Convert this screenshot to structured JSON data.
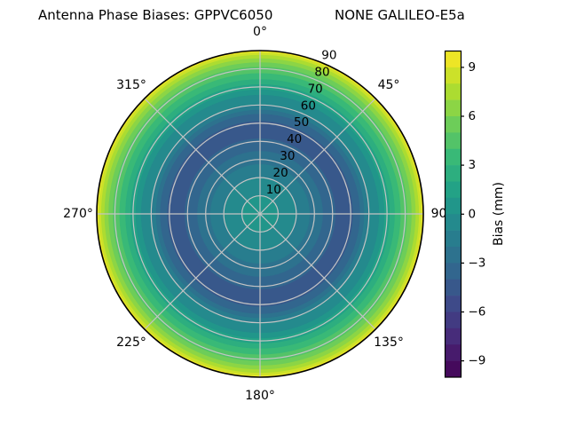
{
  "figure": {
    "background": "#ffffff",
    "title_left": "Antenna Phase Biases: GPPVC6050",
    "title_right": "NONE GALILEO-E5a"
  },
  "chart_data": {
    "type": "heatmap",
    "projection": "polar",
    "title": "Antenna Phase Biases: GPPVC6050    NONE GALILEO-E5a",
    "theta_zero_location": "top",
    "angle_ticks": [
      {
        "deg": 0,
        "label": "0°"
      },
      {
        "deg": 45,
        "label": "45°"
      },
      {
        "deg": 90,
        "label": "90°"
      },
      {
        "deg": 135,
        "label": "135°"
      },
      {
        "deg": 180,
        "label": "180°"
      },
      {
        "deg": 225,
        "label": "225°"
      },
      {
        "deg": 270,
        "label": "270°"
      },
      {
        "deg": 315,
        "label": "315°"
      }
    ],
    "radial_ticks": {
      "angle_deg": 22.5,
      "max": 90,
      "values": [
        10,
        20,
        30,
        40,
        50,
        60,
        70,
        80,
        90
      ],
      "labels": [
        "10",
        "20",
        "30",
        "40",
        "50",
        "60",
        "70",
        "80",
        "90"
      ]
    },
    "grid": {
      "show": true,
      "color": "#c4c4c4"
    },
    "contour": {
      "vmin": -10,
      "vmax": 10,
      "level_step_mm": 1
    },
    "radial_profile": {
      "zenith_deg": [
        0,
        5,
        10,
        15,
        20,
        24,
        28,
        32,
        36,
        40,
        44,
        48,
        52,
        55,
        57.5,
        60,
        62.5,
        65,
        67,
        69,
        71,
        73,
        75,
        77,
        79,
        81,
        83,
        85,
        86.5,
        87.5,
        88.5,
        89.2,
        90
      ],
      "bias_mm": [
        0.6,
        0.45,
        0,
        -0.5,
        -1.0,
        -1.55,
        -2.1,
        -2.65,
        -3.2,
        -3.85,
        -4.25,
        -4.3,
        -3.9,
        -3.0,
        -1.9,
        -1.0,
        -0.55,
        -0.15,
        0.5,
        1.2,
        1.9,
        2.6,
        3.3,
        3.9,
        4.4,
        5.0,
        5.8,
        6.7,
        7.4,
        8.0,
        8.7,
        9.2,
        9.7
      ]
    },
    "colormap": {
      "name": "viridis",
      "stops": [
        "#440154",
        "#482878",
        "#3e4989",
        "#31688e",
        "#26828e",
        "#1f9e89",
        "#35b779",
        "#6ece58",
        "#b5de2b",
        "#fde725"
      ]
    },
    "colorbar": {
      "label": "Bias (mm)",
      "tick_values": [
        9,
        6,
        3,
        0,
        -3,
        -6,
        -9
      ],
      "tick_labels": [
        "9",
        "6",
        "3",
        "0",
        "−3",
        "−6",
        "−9"
      ],
      "n_bands": 20
    }
  }
}
